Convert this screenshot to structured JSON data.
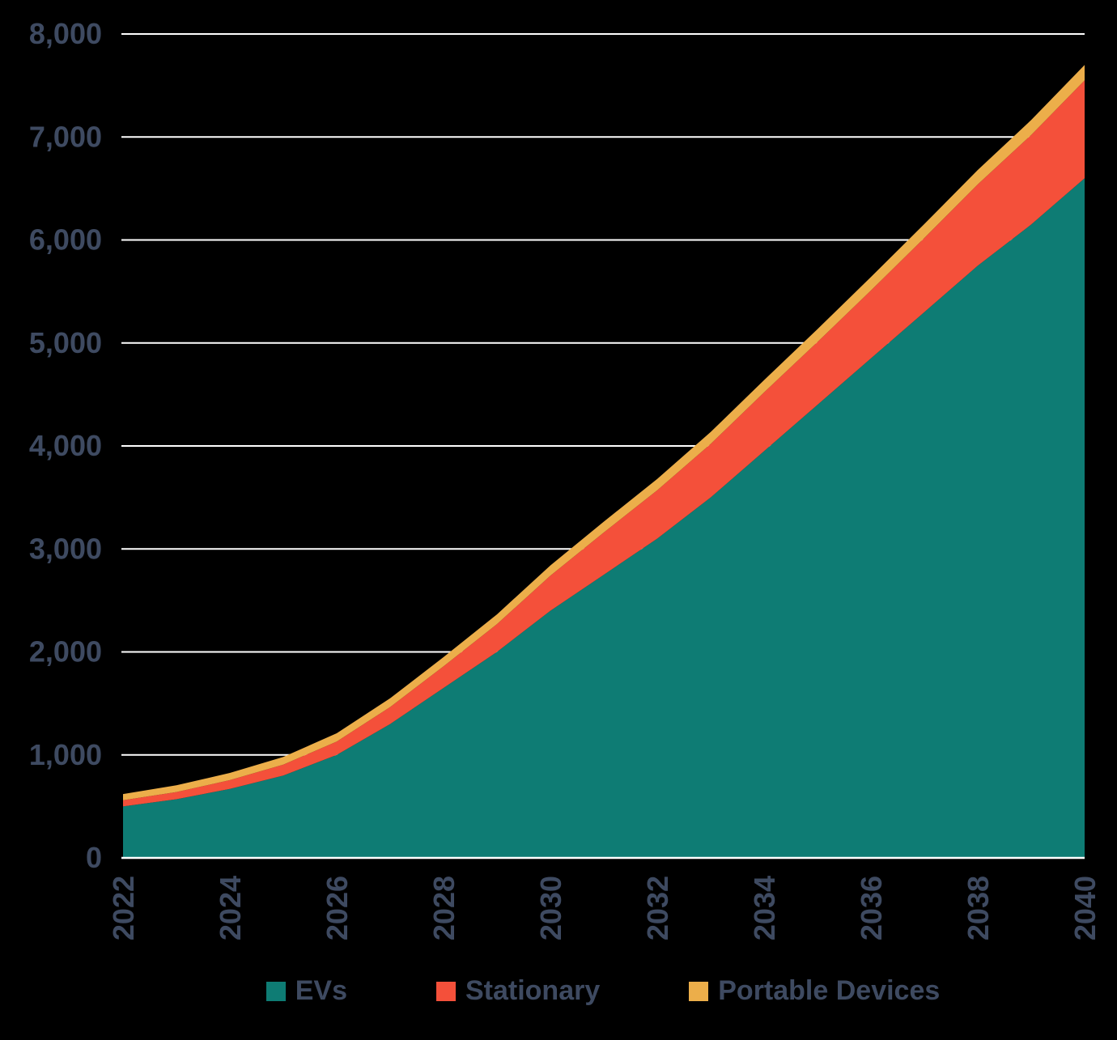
{
  "chart_data": {
    "type": "area",
    "stacked": true,
    "title": "",
    "xlabel": "",
    "ylabel": "",
    "x": [
      2022,
      2023,
      2024,
      2025,
      2026,
      2027,
      2028,
      2029,
      2030,
      2031,
      2032,
      2033,
      2034,
      2035,
      2036,
      2037,
      2038,
      2039,
      2040
    ],
    "series": [
      {
        "name": "EVs",
        "color": "#0e7c74",
        "values": [
          500,
          570,
          670,
          800,
          1000,
          1300,
          1650,
          2000,
          2400,
          2750,
          3100,
          3500,
          3950,
          4400,
          4850,
          5300,
          5750,
          6150,
          6600
        ]
      },
      {
        "name": "Stationary",
        "color": "#f4503a",
        "values": [
          60,
          70,
          85,
          105,
          130,
          165,
          210,
          270,
          340,
          410,
          470,
          520,
          570,
          610,
          660,
          720,
          790,
          870,
          950
        ]
      },
      {
        "name": "Portable Devices",
        "color": "#ecae4a",
        "values": [
          60,
          65,
          70,
          75,
          80,
          85,
          90,
          95,
          100,
          105,
          110,
          115,
          120,
          125,
          130,
          135,
          140,
          145,
          150
        ]
      }
    ],
    "ylim": [
      0,
      8000
    ],
    "yticks": [
      0,
      1000,
      2000,
      3000,
      4000,
      5000,
      6000,
      7000,
      8000
    ],
    "ytick_labels": [
      "0",
      "1,000",
      "2,000",
      "3,000",
      "4,000",
      "5,000",
      "6,000",
      "7,000",
      "8,000"
    ],
    "xticks": [
      2022,
      2024,
      2026,
      2028,
      2030,
      2032,
      2034,
      2036,
      2038,
      2040
    ],
    "grid": true,
    "legend_position": "bottom",
    "colors": {
      "background": "#000000",
      "gridline": "#ffffff",
      "axis_label": "#3e4a61"
    }
  }
}
